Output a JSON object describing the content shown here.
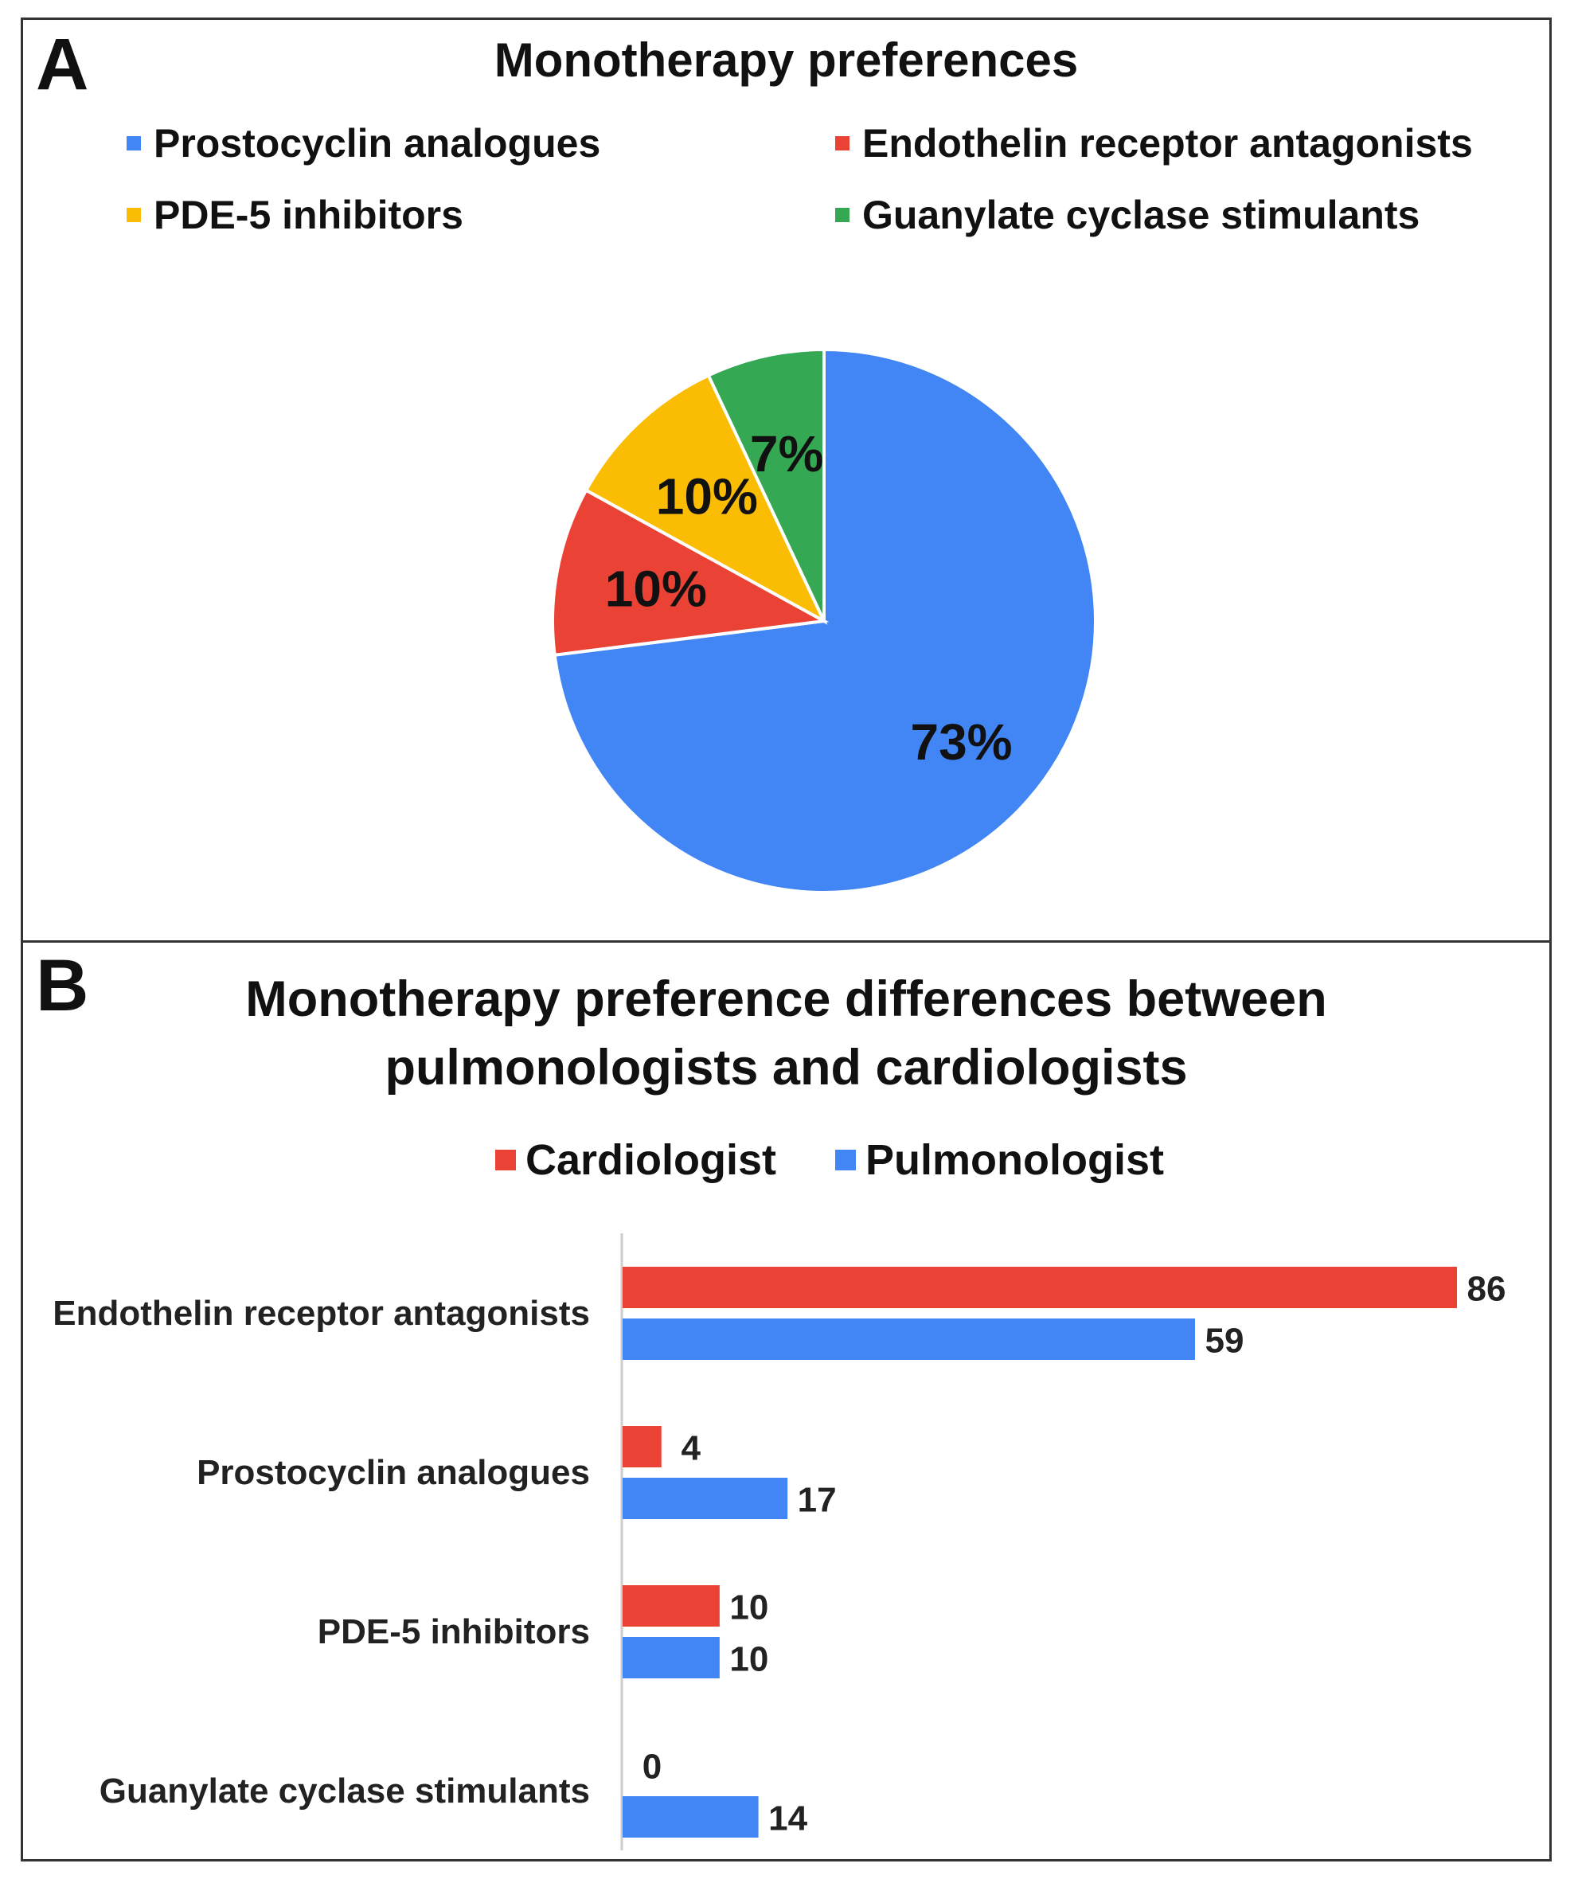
{
  "chart_data": [
    {
      "type": "pie",
      "panel_label": "A",
      "title": "Monotherapy preferences",
      "categories": [
        "Prostocyclin analogues",
        "Endothelin receptor antagonists",
        "PDE-5 inhibitors",
        "Guanylate cyclase stimulants"
      ],
      "legend_order": [
        "Prostocyclin analogues",
        "Endothelin receptor antagonists",
        "PDE-5 inhibitors",
        "Guanylate cyclase stimulants"
      ],
      "slices": [
        {
          "label": "Prostocyclin analogues",
          "value": 73,
          "text": "73%",
          "color": "#4285f4"
        },
        {
          "label": "Endothelin receptor antagonists",
          "value": 10,
          "text": "10%",
          "color": "#ea4335"
        },
        {
          "label": "PDE-5 inhibitors",
          "value": 10,
          "text": "10%",
          "color": "#fbbc04"
        },
        {
          "label": "Guanylate cyclase stimulants",
          "value": 7,
          "text": "7%",
          "color": "#34a853"
        }
      ],
      "legend_position": "top"
    },
    {
      "type": "bar",
      "orientation": "horizontal",
      "panel_label": "B",
      "title_lines": [
        "Monotherapy preference differences between",
        "pulmonologists and cardiologists"
      ],
      "categories": [
        "Endothelin receptor antagonists",
        "Prostocyclin analogues",
        "PDE-5 inhibitors",
        "Guanylate cyclase stimulants"
      ],
      "series": [
        {
          "name": "Cardiologist",
          "color": "#ea4335",
          "values": [
            86,
            4,
            10,
            0
          ]
        },
        {
          "name": "Pulmonologist",
          "color": "#4285f4",
          "values": [
            59,
            17,
            10,
            14
          ]
        }
      ],
      "xlim": [
        0,
        86
      ],
      "grid": false,
      "legend_position": "top"
    }
  ]
}
